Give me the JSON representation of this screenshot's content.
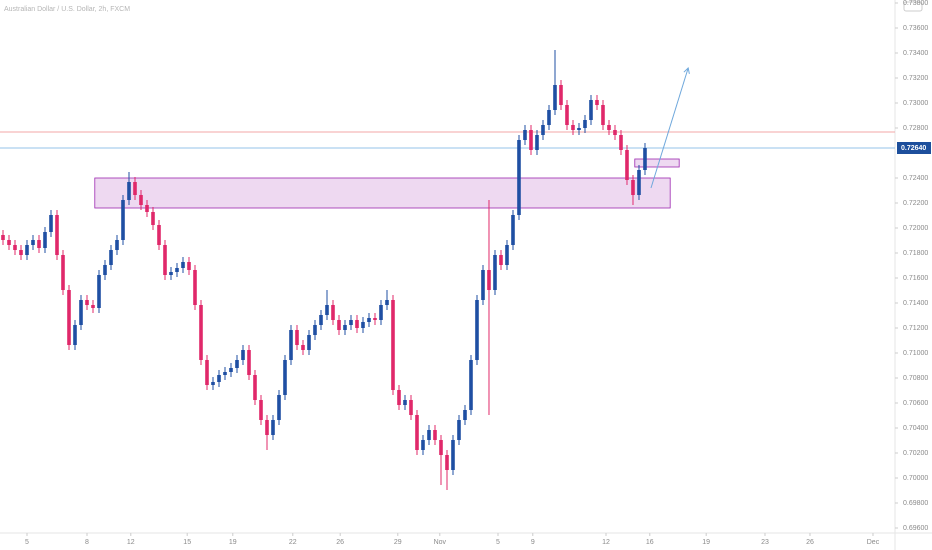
{
  "chart_data": {
    "type": "candlestick",
    "title": "Australian Dollar / U.S. Dollar, 2h, FXCM",
    "xlim": [
      -0.5,
      148.67
    ],
    "ylim": [
      0.6956,
      0.73824
    ],
    "up_color": "#1f4fa3",
    "down_color": "#e0286a",
    "yticks": [
      {
        "value": 0.696,
        "label": "0.69600"
      },
      {
        "value": 0.698,
        "label": "0.69800"
      },
      {
        "value": 0.7,
        "label": "0.70000"
      },
      {
        "value": 0.702,
        "label": "0.70200"
      },
      {
        "value": 0.704,
        "label": "0.70400"
      },
      {
        "value": 0.706,
        "label": "0.70600"
      },
      {
        "value": 0.708,
        "label": "0.70800"
      },
      {
        "value": 0.71,
        "label": "0.71000"
      },
      {
        "value": 0.712,
        "label": "0.71200"
      },
      {
        "value": 0.714,
        "label": "0.71400"
      },
      {
        "value": 0.716,
        "label": "0.71600"
      },
      {
        "value": 0.718,
        "label": "0.71800"
      },
      {
        "value": 0.72,
        "label": "0.72000"
      },
      {
        "value": 0.722,
        "label": "0.72200"
      },
      {
        "value": 0.724,
        "label": "0.72400"
      },
      {
        "value": 0.728,
        "label": "0.72800"
      },
      {
        "value": 0.73,
        "label": "0.73000"
      },
      {
        "value": 0.732,
        "label": "0.73200"
      },
      {
        "value": 0.734,
        "label": "0.73400"
      },
      {
        "value": 0.736,
        "label": "0.73600"
      },
      {
        "value": 0.738,
        "label": "0.73800"
      }
    ],
    "xticks": [
      {
        "value": 4,
        "label": "5"
      },
      {
        "value": 14,
        "label": "8"
      },
      {
        "value": 21.3,
        "label": "12"
      },
      {
        "value": 30.7,
        "label": "15"
      },
      {
        "value": 38.3,
        "label": "19"
      },
      {
        "value": 48.3,
        "label": "22"
      },
      {
        "value": 56.2,
        "label": "26"
      },
      {
        "value": 65.8,
        "label": "29"
      },
      {
        "value": 72.8,
        "label": "Nov"
      },
      {
        "value": 82.5,
        "label": "5"
      },
      {
        "value": 88.3,
        "label": "9"
      },
      {
        "value": 100.5,
        "label": "12"
      },
      {
        "value": 107.8,
        "label": "16"
      },
      {
        "value": 117.2,
        "label": "19"
      },
      {
        "value": 127,
        "label": "23"
      },
      {
        "value": 134.5,
        "label": "26"
      },
      {
        "value": 145,
        "label": "Dec"
      }
    ],
    "series": {
      "open": [
        0.71944,
        0.71904,
        0.71864,
        0.71824,
        0.71784,
        0.71864,
        0.71904,
        0.7184,
        0.71968,
        0.72104,
        0.71784,
        0.71504,
        0.71064,
        0.71224,
        0.71424,
        0.71384,
        0.7136,
        0.71624,
        0.71704,
        0.71824,
        0.71904,
        0.72224,
        0.72368,
        0.72264,
        0.72184,
        0.72128,
        0.72024,
        0.71864,
        0.71624,
        0.71648,
        0.7168,
        0.71728,
        0.71664,
        0.71384,
        0.70944,
        0.70744,
        0.70768,
        0.70824,
        0.70848,
        0.7088,
        0.70944,
        0.71024,
        0.70824,
        0.70624,
        0.70464,
        0.70344,
        0.70464,
        0.70664,
        0.70944,
        0.71184,
        0.71064,
        0.71024,
        0.71144,
        0.71224,
        0.71304,
        0.71384,
        0.71264,
        0.71184,
        0.71224,
        0.71264,
        0.712,
        0.71248,
        0.7128,
        0.71264,
        0.71384,
        0.71424,
        0.70704,
        0.70584,
        0.70624,
        0.70504,
        0.70224,
        0.70304,
        0.70384,
        0.70304,
        0.70184,
        0.70064,
        0.70304,
        0.70464,
        0.70544,
        0.70944,
        0.71424,
        0.71664,
        0.71504,
        0.71784,
        0.71704,
        0.71864,
        0.72104,
        0.72704,
        0.72784,
        0.72624,
        0.72744,
        0.72824,
        0.72944,
        0.73144,
        0.72984,
        0.72824,
        0.72784,
        0.728,
        0.72864,
        0.73024,
        0.72984,
        0.72824,
        0.72784,
        0.72744,
        0.72624,
        0.72384,
        0.72264,
        0.72464
      ],
      "high": [
        0.71984,
        0.71944,
        0.71904,
        0.71864,
        0.71904,
        0.71944,
        0.71944,
        0.72008,
        0.72144,
        0.72144,
        0.71824,
        0.71544,
        0.71264,
        0.71464,
        0.71464,
        0.71424,
        0.71664,
        0.71744,
        0.71864,
        0.71944,
        0.72264,
        0.72448,
        0.72408,
        0.72304,
        0.72224,
        0.72168,
        0.72064,
        0.71904,
        0.71688,
        0.7172,
        0.71768,
        0.71768,
        0.71704,
        0.71424,
        0.70984,
        0.70808,
        0.70864,
        0.70888,
        0.7092,
        0.70984,
        0.71064,
        0.71064,
        0.70864,
        0.70664,
        0.70504,
        0.70504,
        0.70704,
        0.70984,
        0.71224,
        0.71224,
        0.71104,
        0.71184,
        0.71264,
        0.71344,
        0.71504,
        0.71424,
        0.71304,
        0.71264,
        0.71304,
        0.71304,
        0.71288,
        0.7132,
        0.7132,
        0.71424,
        0.71504,
        0.71464,
        0.70744,
        0.70664,
        0.70664,
        0.70544,
        0.70344,
        0.70424,
        0.70424,
        0.70344,
        0.70224,
        0.70344,
        0.70504,
        0.70584,
        0.70984,
        0.71464,
        0.71704,
        0.72224,
        0.71824,
        0.71824,
        0.71904,
        0.72144,
        0.72744,
        0.72824,
        0.72824,
        0.72784,
        0.72864,
        0.72984,
        0.73424,
        0.73184,
        0.73024,
        0.72864,
        0.7284,
        0.72904,
        0.73064,
        0.73064,
        0.73024,
        0.72864,
        0.72824,
        0.72784,
        0.72664,
        0.72424,
        0.72504,
        0.7268
      ],
      "low": [
        0.71864,
        0.71824,
        0.71784,
        0.71744,
        0.71744,
        0.71824,
        0.718,
        0.718,
        0.71928,
        0.71744,
        0.71464,
        0.71024,
        0.71024,
        0.71184,
        0.71344,
        0.7132,
        0.7132,
        0.71584,
        0.71664,
        0.71784,
        0.71864,
        0.72184,
        0.72224,
        0.72144,
        0.72088,
        0.71984,
        0.71824,
        0.71584,
        0.71584,
        0.71608,
        0.7164,
        0.71624,
        0.71344,
        0.70904,
        0.70704,
        0.70704,
        0.70728,
        0.70784,
        0.70808,
        0.7084,
        0.70904,
        0.70784,
        0.70584,
        0.70424,
        0.70224,
        0.70304,
        0.70424,
        0.70624,
        0.70904,
        0.71024,
        0.70984,
        0.70984,
        0.71104,
        0.71184,
        0.71264,
        0.71224,
        0.71144,
        0.71144,
        0.71184,
        0.7116,
        0.7116,
        0.71208,
        0.71224,
        0.71224,
        0.71344,
        0.70664,
        0.70544,
        0.70544,
        0.70464,
        0.70184,
        0.70184,
        0.70264,
        0.70264,
        0.69944,
        0.69904,
        0.70024,
        0.70264,
        0.70424,
        0.70504,
        0.70904,
        0.71384,
        0.70504,
        0.71464,
        0.71664,
        0.71664,
        0.71824,
        0.72064,
        0.72664,
        0.72584,
        0.72584,
        0.72704,
        0.72784,
        0.72904,
        0.72944,
        0.72784,
        0.72744,
        0.72744,
        0.7276,
        0.72824,
        0.72944,
        0.72784,
        0.72744,
        0.72704,
        0.72584,
        0.72344,
        0.72184,
        0.72224,
        0.72424
      ],
      "close": [
        0.71904,
        0.71864,
        0.71824,
        0.71784,
        0.71864,
        0.71904,
        0.7184,
        0.71968,
        0.72104,
        0.71784,
        0.71504,
        0.71064,
        0.71224,
        0.71424,
        0.71384,
        0.7136,
        0.71624,
        0.71704,
        0.71824,
        0.71904,
        0.72224,
        0.72368,
        0.72264,
        0.72184,
        0.72128,
        0.72024,
        0.71864,
        0.71624,
        0.71648,
        0.7168,
        0.71728,
        0.71664,
        0.71384,
        0.70944,
        0.70744,
        0.70768,
        0.70824,
        0.70848,
        0.7088,
        0.70944,
        0.71024,
        0.70824,
        0.70624,
        0.70464,
        0.70344,
        0.70464,
        0.70664,
        0.70944,
        0.71184,
        0.71064,
        0.71024,
        0.71144,
        0.71224,
        0.71304,
        0.71384,
        0.71264,
        0.71184,
        0.71224,
        0.71264,
        0.712,
        0.71248,
        0.7128,
        0.71264,
        0.71384,
        0.71424,
        0.70704,
        0.70584,
        0.70624,
        0.70504,
        0.70224,
        0.70304,
        0.70384,
        0.70304,
        0.70184,
        0.70064,
        0.70304,
        0.70464,
        0.70544,
        0.70944,
        0.71424,
        0.71664,
        0.71504,
        0.71784,
        0.71704,
        0.71864,
        0.72104,
        0.72704,
        0.72784,
        0.72624,
        0.72744,
        0.72824,
        0.72944,
        0.73144,
        0.72984,
        0.72824,
        0.72784,
        0.728,
        0.72864,
        0.73024,
        0.72984,
        0.72824,
        0.72784,
        0.72744,
        0.72624,
        0.72384,
        0.72264,
        0.72464,
        0.7264
      ]
    },
    "price_lines": [
      {
        "value": 0.72768,
        "color": "#f3a7a7"
      },
      {
        "value": 0.7264,
        "color": "#94c3ea"
      }
    ],
    "last_price": {
      "value": 0.7264,
      "label": "0.72640",
      "color": "#1d4f9c"
    },
    "zones": [
      {
        "x": [
          15.3,
          111.2
        ],
        "y": [
          0.724,
          0.7216
        ]
      },
      {
        "x": [
          105.3,
          112.7
        ],
        "y": [
          0.72552,
          0.72488
        ]
      }
    ],
    "arrow": {
      "x": [
        108,
        114.2
      ],
      "y": [
        0.7232,
        0.7328
      ],
      "color": "#6fa8dc"
    }
  }
}
